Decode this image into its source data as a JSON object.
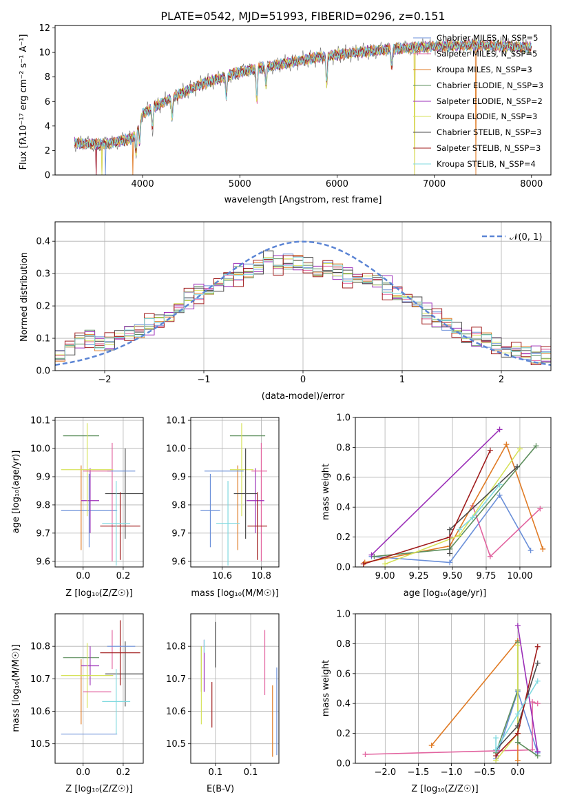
{
  "figure": {
    "title": "PLATE=0542, MJD=51993, FIBERID=0296, z=0.151"
  },
  "series_colors": [
    "#6a8fd9",
    "#e2639f",
    "#e07b25",
    "#5e8f5e",
    "#9b2fb8",
    "#d6e25a",
    "#4a4a4a",
    "#a01c1c",
    "#7fd9df"
  ],
  "chart_data": [
    {
      "id": "spectrum",
      "type": "line",
      "xlabel": "wavelength [Angstrom, rest frame]",
      "ylabel": "Flux [fλ10⁻¹⁷ erg cm⁻² s⁻¹ A⁻¹]",
      "xlim": [
        3100,
        8200
      ],
      "ylim": [
        0,
        12.2
      ],
      "xticks": [
        4000,
        5000,
        6000,
        7000,
        8000
      ],
      "yticks": [
        0,
        2,
        4,
        6,
        8,
        10,
        12
      ],
      "grid": false,
      "legend_position": "top-right",
      "legend": [
        "Chabrier MILES, N_SSP=5",
        "Salpeter MILES, N_SSP=5",
        "Kroupa MILES, N_SSP=3",
        "Chabrier ELODIE, N_SSP=3",
        "Salpeter ELODIE, N_SSP=2",
        "Kroupa ELODIE, N_SSP=3",
        "Chabrier STELIB, N_SSP=3",
        "Salpeter STELIB, N_SSP=3",
        "Kroupa STELIB, N_SSP=4"
      ],
      "continuum": [
        [
          3300,
          2.6
        ],
        [
          3600,
          2.5
        ],
        [
          3900,
          3.0
        ],
        [
          4000,
          5.0
        ],
        [
          4300,
          6.3
        ],
        [
          4600,
          7.4
        ],
        [
          5000,
          8.4
        ],
        [
          5400,
          9.0
        ],
        [
          5800,
          9.6
        ],
        [
          6200,
          10.0
        ],
        [
          6600,
          10.3
        ],
        [
          7000,
          10.5
        ],
        [
          7400,
          10.6
        ],
        [
          7800,
          10.5
        ],
        [
          8000,
          10.4
        ]
      ],
      "absorption_features": [
        [
          3934,
          2.0
        ],
        [
          3969,
          1.8
        ],
        [
          4102,
          1.6
        ],
        [
          4304,
          1.8
        ],
        [
          4861,
          1.7
        ],
        [
          5175,
          2.6
        ],
        [
          5270,
          1.5
        ],
        [
          5894,
          2.3
        ],
        [
          6563,
          1.4
        ]
      ],
      "model_dropouts": [
        [
          3520,
          4
        ],
        [
          3580,
          5
        ],
        [
          3620,
          0
        ],
        [
          3900,
          2
        ],
        [
          6800,
          5
        ],
        [
          7430,
          2
        ]
      ]
    },
    {
      "id": "residual-histogram",
      "type": "bar",
      "xlabel": "(data-model)/error",
      "ylabel": "Normed distribution",
      "xlim": [
        -2.5,
        2.5
      ],
      "ylim": [
        0,
        0.46
      ],
      "xticks": [
        -2,
        -1,
        0,
        1,
        2
      ],
      "yticks": [
        0.0,
        0.1,
        0.2,
        0.3,
        0.4
      ],
      "grid": true,
      "legend_position": "top-right",
      "reference_curve": "𝒩(0, 1)",
      "bin_edges": [
        -2.5,
        -2.4,
        -2.3,
        -2.2,
        -2.1,
        -2.0,
        -1.9,
        -1.8,
        -1.7,
        -1.6,
        -1.5,
        -1.4,
        -1.3,
        -1.2,
        -1.1,
        -1.0,
        -0.9,
        -0.8,
        -0.7,
        -0.6,
        -0.5,
        -0.4,
        -0.3,
        -0.2,
        -0.1,
        0.0,
        0.1,
        0.2,
        0.3,
        0.4,
        0.5,
        0.6,
        0.7,
        0.8,
        0.9,
        1.0,
        1.1,
        1.2,
        1.3,
        1.4,
        1.5,
        1.6,
        1.7,
        1.8,
        1.9,
        2.0,
        2.1,
        2.2,
        2.3,
        2.4,
        2.5
      ],
      "base_values": [
        0.05,
        0.08,
        0.09,
        0.1,
        0.09,
        0.09,
        0.1,
        0.12,
        0.13,
        0.14,
        0.15,
        0.17,
        0.2,
        0.22,
        0.24,
        0.25,
        0.27,
        0.28,
        0.3,
        0.31,
        0.32,
        0.34,
        0.33,
        0.34,
        0.33,
        0.32,
        0.31,
        0.32,
        0.3,
        0.29,
        0.29,
        0.28,
        0.27,
        0.26,
        0.24,
        0.22,
        0.2,
        0.18,
        0.16,
        0.14,
        0.12,
        0.11,
        0.1,
        0.09,
        0.08,
        0.07,
        0.06,
        0.05,
        0.05,
        0.05
      ],
      "series_offsets": [
        0.01,
        -0.012,
        0.018,
        -0.015,
        0.022,
        0.005,
        -0.02,
        -0.03,
        0.014
      ]
    },
    {
      "id": "age-vs-z",
      "type": "scatter",
      "xlabel": "Z [log₁₀(Z/Z☉)]",
      "ylabel": "age [log₁₀(age/yr)]",
      "xlim": [
        -0.14,
        0.3
      ],
      "ylim": [
        9.58,
        10.11
      ],
      "xticks": [
        0.0,
        0.2
      ],
      "yticks": [
        9.6,
        9.7,
        9.8,
        9.9,
        10.0,
        10.1
      ],
      "grid": true,
      "points": [
        {
          "x": 0.03,
          "y": 9.78,
          "xerr": 0.14,
          "yerr": 0.13
        },
        {
          "x": 0.145,
          "y": 9.81,
          "xerr": 0.0,
          "yerr": 0.21
        },
        {
          "x": -0.01,
          "y": 9.79,
          "xerr": 0.0,
          "yerr": 0.15
        },
        {
          "x": -0.01,
          "y": 10.045,
          "xerr": 0.09,
          "yerr": 0.0
        },
        {
          "x": 0.035,
          "y": 9.815,
          "xerr": 0.045,
          "yerr": 0.115
        },
        {
          "x": 0.02,
          "y": 9.925,
          "xerr": 0.13,
          "yerr": 0.165
        },
        {
          "x": 0.21,
          "y": 9.84,
          "xerr": 0.1,
          "yerr": 0.16
        },
        {
          "x": 0.185,
          "y": 9.725,
          "xerr": 0.1,
          "yerr": 0.12
        },
        {
          "x": 0.165,
          "y": 9.735,
          "xerr": 0.07,
          "yerr": 0.15
        },
        {
          "x": 0.19,
          "y": 9.92,
          "xerr": 0.07,
          "yerr": 0.0
        },
        {
          "x": 0.07,
          "y": 9.92,
          "xerr": 0.07,
          "yerr": 0.0
        }
      ]
    },
    {
      "id": "age-vs-mass",
      "type": "scatter",
      "xlabel": "mass [log₁₀(M/M☉)]",
      "ylabel": "",
      "xlim": [
        10.44,
        10.89
      ],
      "ylim": [
        9.58,
        10.11
      ],
      "xticks": [
        10.6,
        10.8
      ],
      "yticks": [
        9.6,
        9.7,
        9.8,
        9.9,
        10.0,
        10.1
      ],
      "grid": true,
      "points": [
        {
          "x": 10.54,
          "y": 9.78,
          "xerr": 0.05,
          "yerr": 0.13
        },
        {
          "x": 10.8,
          "y": 9.81,
          "xerr": 0.0,
          "yerr": 0.21
        },
        {
          "x": 10.68,
          "y": 9.79,
          "xerr": 0.0,
          "yerr": 0.15
        },
        {
          "x": 10.73,
          "y": 10.045,
          "xerr": 0.09,
          "yerr": 0.0
        },
        {
          "x": 10.77,
          "y": 9.815,
          "xerr": 0.045,
          "yerr": 0.115
        },
        {
          "x": 10.7,
          "y": 9.925,
          "xerr": 0.06,
          "yerr": 0.165
        },
        {
          "x": 10.72,
          "y": 9.84,
          "xerr": 0.06,
          "yerr": 0.16
        },
        {
          "x": 10.78,
          "y": 9.725,
          "xerr": 0.05,
          "yerr": 0.12
        },
        {
          "x": 10.63,
          "y": 9.735,
          "xerr": 0.06,
          "yerr": 0.15
        },
        {
          "x": 10.61,
          "y": 9.92,
          "xerr": 0.1,
          "yerr": 0.0
        },
        {
          "x": 10.79,
          "y": 9.92,
          "xerr": 0.04,
          "yerr": 0.0
        }
      ]
    },
    {
      "id": "weight-vs-age",
      "type": "line",
      "xlabel": "age [log₁₀(age/yr)]",
      "ylabel": "mass weight",
      "xlim": [
        8.78,
        10.23
      ],
      "ylim": [
        0,
        1.0
      ],
      "xticks": [
        9.0,
        9.25,
        9.5,
        9.75,
        10.0
      ],
      "yticks": [
        0.0,
        0.2,
        0.4,
        0.6,
        0.8,
        1.0
      ],
      "grid": true,
      "series": [
        {
          "points": [
            [
              8.9,
              0.07
            ],
            [
              9.48,
              0.03
            ],
            [
              9.85,
              0.48
            ],
            [
              10.08,
              0.11
            ]
          ]
        },
        {
          "points": [
            [
              9.65,
              0.41
            ],
            [
              9.78,
              0.07
            ],
            [
              10.15,
              0.39
            ]
          ]
        },
        {
          "points": [
            [
              8.85,
              0.03
            ],
            [
              9.48,
              0.14
            ],
            [
              9.9,
              0.82
            ],
            [
              10.17,
              0.12
            ]
          ]
        },
        {
          "points": [
            [
              8.92,
              0.07
            ],
            [
              9.48,
              0.12
            ],
            [
              10.12,
              0.81
            ]
          ]
        },
        {
          "points": [
            [
              8.9,
              0.08
            ],
            [
              9.85,
              0.92
            ]
          ]
        },
        {
          "points": [
            [
              9.0,
              0.02
            ],
            [
              9.55,
              0.21
            ],
            [
              10.0,
              0.79
            ]
          ]
        },
        {
          "points": [
            [
              9.48,
              0.09
            ],
            [
              9.48,
              0.25
            ],
            [
              9.98,
              0.67
            ]
          ]
        },
        {
          "points": [
            [
              8.84,
              0.02
            ],
            [
              9.48,
              0.2
            ],
            [
              9.78,
              0.78
            ]
          ]
        },
        {
          "points": [
            [
              9.55,
              0.25
            ],
            [
              9.65,
              0.33
            ],
            [
              9.85,
              0.55
            ]
          ]
        }
      ]
    },
    {
      "id": "mass-vs-z",
      "type": "scatter",
      "xlabel": "Z [log₁₀(Z/Z☉)]",
      "ylabel": "mass [log₁₀(M/M☉)]",
      "xlim": [
        -0.14,
        0.3
      ],
      "ylim": [
        10.44,
        10.9
      ],
      "xticks": [
        0.0,
        0.2
      ],
      "yticks": [
        10.5,
        10.6,
        10.7,
        10.8
      ],
      "grid": true,
      "points": [
        {
          "x": 0.03,
          "y": 10.53,
          "xerr": 0.14,
          "yerr": 0.0
        },
        {
          "x": 0.145,
          "y": 10.79,
          "xerr": 0.0,
          "yerr": 0.06
        },
        {
          "x": -0.01,
          "y": 10.66,
          "xerr": 0.0,
          "yerr": 0.1
        },
        {
          "x": -0.01,
          "y": 10.765,
          "xerr": 0.09,
          "yerr": 0.0
        },
        {
          "x": 0.035,
          "y": 10.74,
          "xerr": 0.045,
          "yerr": 0.06
        },
        {
          "x": 0.02,
          "y": 10.71,
          "xerr": 0.13,
          "yerr": 0.1
        },
        {
          "x": 0.21,
          "y": 10.715,
          "xerr": 0.1,
          "yerr": 0.1
        },
        {
          "x": 0.185,
          "y": 10.78,
          "xerr": 0.1,
          "yerr": 0.1
        },
        {
          "x": 0.165,
          "y": 10.63,
          "xerr": 0.07,
          "yerr": 0.1
        },
        {
          "x": 0.19,
          "y": 10.8,
          "xerr": 0.07,
          "yerr": 0.0
        },
        {
          "x": 0.07,
          "y": 10.66,
          "xerr": 0.07,
          "yerr": 0.0
        }
      ]
    },
    {
      "id": "mass-vs-ebv",
      "type": "scatter",
      "xlabel": "E(B-V)",
      "ylabel": "",
      "xlim": [
        0.065,
        0.19
      ],
      "ylim": [
        10.44,
        10.9
      ],
      "xticks": [
        0.1,
        0.15
      ],
      "yticks": [
        10.5,
        10.6,
        10.7,
        10.8
      ],
      "grid": true,
      "points": [
        {
          "x": 0.187,
          "y": 10.6,
          "xerr": 0.0,
          "yerr": 0.135
        },
        {
          "x": 0.17,
          "y": 10.75,
          "xerr": 0.0,
          "yerr": 0.1
        },
        {
          "x": 0.181,
          "y": 10.57,
          "xerr": 0.0,
          "yerr": 0.11
        },
        {
          "x": 0.08,
          "y": 10.73,
          "xerr": 0.0,
          "yerr": 0.07
        },
        {
          "x": 0.084,
          "y": 10.74,
          "xerr": 0.0,
          "yerr": 0.08
        },
        {
          "x": 0.08,
          "y": 10.68,
          "xerr": 0.0,
          "yerr": 0.12
        },
        {
          "x": 0.1,
          "y": 10.805,
          "xerr": 0.0,
          "yerr": 0.07
        },
        {
          "x": 0.095,
          "y": 10.62,
          "xerr": 0.0,
          "yerr": 0.07
        },
        {
          "x": 0.084,
          "y": 10.8,
          "xerr": 0.0,
          "yerr": 0.02
        }
      ]
    },
    {
      "id": "weight-vs-z",
      "type": "line",
      "xlabel": "Z [log₁₀(Z/Z☉)]",
      "ylabel": "mass weight",
      "xlim": [
        -2.45,
        0.5
      ],
      "ylim": [
        0,
        1.0
      ],
      "xticks": [
        -2.0,
        -1.5,
        -1.0,
        -0.5,
        0.0
      ],
      "yticks": [
        0.0,
        0.2,
        0.4,
        0.6,
        0.8,
        1.0
      ],
      "grid": true,
      "series": [
        {
          "points": [
            [
              -0.33,
              0.03
            ],
            [
              0.0,
              0.48
            ],
            [
              0.3,
              0.07
            ]
          ]
        },
        {
          "points": [
            [
              -2.3,
              0.06
            ],
            [
              0.22,
              0.09
            ],
            [
              0.22,
              0.41
            ],
            [
              0.3,
              0.4
            ]
          ]
        },
        {
          "points": [
            [
              -1.3,
              0.12
            ],
            [
              0.0,
              0.82
            ],
            [
              0.0,
              0.02
            ]
          ]
        },
        {
          "points": [
            [
              -0.33,
              0.07
            ],
            [
              0.0,
              0.49
            ],
            [
              0.0,
              0.81
            ],
            [
              0.0,
              0.14
            ],
            [
              0.3,
              0.05
            ]
          ]
        },
        {
          "points": [
            [
              0.0,
              0.92
            ],
            [
              0.3,
              0.08
            ]
          ]
        },
        {
          "points": [
            [
              -0.33,
              0.02
            ],
            [
              0.0,
              0.2
            ],
            [
              0.0,
              0.79
            ]
          ]
        },
        {
          "points": [
            [
              -0.33,
              0.09
            ],
            [
              0.0,
              0.25
            ],
            [
              0.3,
              0.67
            ]
          ]
        },
        {
          "points": [
            [
              -0.33,
              0.05
            ],
            [
              0.0,
              0.2
            ],
            [
              0.3,
              0.78
            ]
          ]
        },
        {
          "points": [
            [
              -0.33,
              0.17
            ],
            [
              -0.33,
              0.09
            ],
            [
              0.0,
              0.33
            ],
            [
              0.3,
              0.55
            ]
          ]
        }
      ]
    }
  ]
}
